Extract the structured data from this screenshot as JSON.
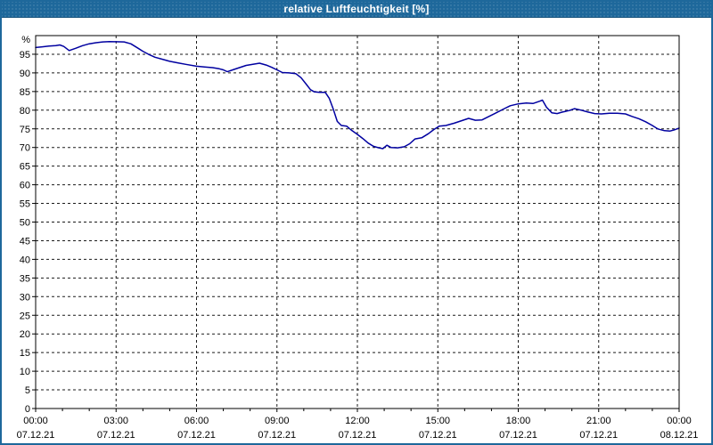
{
  "window": {
    "title": "relative Luftfeuchtigkeit [%]"
  },
  "colors": {
    "titlebar_bg": "#1E689B",
    "titlebar_text": "#FFFFFF",
    "frame": "#1E689B",
    "plot_background": "#FFFFFF",
    "plot_border": "#000000",
    "grid": "#1A1A1A",
    "line": "#0000A0",
    "label_text": "#000000"
  },
  "chart_data": {
    "type": "line",
    "title": "relative Luftfeuchtigkeit [%]",
    "ylabel": "%",
    "ylim": [
      0,
      100
    ],
    "ytick_step": 5,
    "ytick_label_min": 0,
    "ytick_label_max": 95,
    "grid": "dashed",
    "legend": "none",
    "xlim_hours": [
      0,
      24
    ],
    "minor_xtick_every_hours": 1,
    "xticks": [
      {
        "hour": 0,
        "time": "00:00",
        "date": "07.12.21"
      },
      {
        "hour": 3,
        "time": "03:00",
        "date": "07.12.21"
      },
      {
        "hour": 6,
        "time": "06:00",
        "date": "07.12.21"
      },
      {
        "hour": 9,
        "time": "09:00",
        "date": "07.12.21"
      },
      {
        "hour": 12,
        "time": "12:00",
        "date": "07.12.21"
      },
      {
        "hour": 15,
        "time": "15:00",
        "date": "07.12.21"
      },
      {
        "hour": 18,
        "time": "18:00",
        "date": "07.12.21"
      },
      {
        "hour": 21,
        "time": "21:00",
        "date": "07.12.21"
      },
      {
        "hour": 24,
        "time": "00:00",
        "date": "08.12.21"
      }
    ],
    "series": [
      {
        "name": "relative Luftfeuchtigkeit",
        "unit": "%",
        "color": "#0000A0",
        "points": [
          [
            0.0,
            96.8
          ],
          [
            0.25,
            97.0
          ],
          [
            0.5,
            97.2
          ],
          [
            0.75,
            97.3
          ],
          [
            0.9,
            97.5
          ],
          [
            1.05,
            97.1
          ],
          [
            1.25,
            96.0
          ],
          [
            1.5,
            96.6
          ],
          [
            1.75,
            97.3
          ],
          [
            2.0,
            97.8
          ],
          [
            2.25,
            98.1
          ],
          [
            2.5,
            98.3
          ],
          [
            2.75,
            98.4
          ],
          [
            3.0,
            98.35
          ],
          [
            3.3,
            98.3
          ],
          [
            3.55,
            97.8
          ],
          [
            3.8,
            96.7
          ],
          [
            4.0,
            95.8
          ],
          [
            4.2,
            95.0
          ],
          [
            4.45,
            94.2
          ],
          [
            4.7,
            93.7
          ],
          [
            5.0,
            93.1
          ],
          [
            5.3,
            92.7
          ],
          [
            5.6,
            92.3
          ],
          [
            6.0,
            91.8
          ],
          [
            6.3,
            91.6
          ],
          [
            6.6,
            91.4
          ],
          [
            6.85,
            91.1
          ],
          [
            7.0,
            90.8
          ],
          [
            7.15,
            90.3
          ],
          [
            7.35,
            90.8
          ],
          [
            7.6,
            91.4
          ],
          [
            7.85,
            92.0
          ],
          [
            8.1,
            92.3
          ],
          [
            8.35,
            92.6
          ],
          [
            8.6,
            92.1
          ],
          [
            8.8,
            91.5
          ],
          [
            9.0,
            90.8
          ],
          [
            9.2,
            90.1
          ],
          [
            9.45,
            90.0
          ],
          [
            9.7,
            89.8
          ],
          [
            9.9,
            88.7
          ],
          [
            10.1,
            86.9
          ],
          [
            10.25,
            85.5
          ],
          [
            10.4,
            84.9
          ],
          [
            10.6,
            84.8
          ],
          [
            10.8,
            84.8
          ],
          [
            10.95,
            83.2
          ],
          [
            11.1,
            80.3
          ],
          [
            11.25,
            77.0
          ],
          [
            11.4,
            75.9
          ],
          [
            11.6,
            75.7
          ],
          [
            11.8,
            74.5
          ],
          [
            12.0,
            73.5
          ],
          [
            12.2,
            72.4
          ],
          [
            12.4,
            71.2
          ],
          [
            12.6,
            70.3
          ],
          [
            12.8,
            69.9
          ],
          [
            12.95,
            69.7
          ],
          [
            13.1,
            70.6
          ],
          [
            13.25,
            70.0
          ],
          [
            13.5,
            69.9
          ],
          [
            13.75,
            70.2
          ],
          [
            13.95,
            71.0
          ],
          [
            14.15,
            72.3
          ],
          [
            14.4,
            72.6
          ],
          [
            14.65,
            73.7
          ],
          [
            14.85,
            74.8
          ],
          [
            15.05,
            75.7
          ],
          [
            15.3,
            75.9
          ],
          [
            15.6,
            76.5
          ],
          [
            15.9,
            77.2
          ],
          [
            16.15,
            77.8
          ],
          [
            16.4,
            77.3
          ],
          [
            16.65,
            77.4
          ],
          [
            16.9,
            78.3
          ],
          [
            17.15,
            79.2
          ],
          [
            17.45,
            80.3
          ],
          [
            17.7,
            81.2
          ],
          [
            18.0,
            81.7
          ],
          [
            18.3,
            81.9
          ],
          [
            18.55,
            81.8
          ],
          [
            18.8,
            82.4
          ],
          [
            18.9,
            82.7
          ],
          [
            19.05,
            80.8
          ],
          [
            19.25,
            79.3
          ],
          [
            19.45,
            79.1
          ],
          [
            19.65,
            79.5
          ],
          [
            19.9,
            79.9
          ],
          [
            20.1,
            80.4
          ],
          [
            20.35,
            80.0
          ],
          [
            20.6,
            79.5
          ],
          [
            20.85,
            79.1
          ],
          [
            21.1,
            79.0
          ],
          [
            21.4,
            79.2
          ],
          [
            21.7,
            79.2
          ],
          [
            22.0,
            79.0
          ],
          [
            22.25,
            78.3
          ],
          [
            22.5,
            77.7
          ],
          [
            22.75,
            76.9
          ],
          [
            23.0,
            75.9
          ],
          [
            23.2,
            75.0
          ],
          [
            23.45,
            74.5
          ],
          [
            23.65,
            74.4
          ],
          [
            23.85,
            74.8
          ],
          [
            24.0,
            75.2
          ]
        ]
      }
    ]
  }
}
